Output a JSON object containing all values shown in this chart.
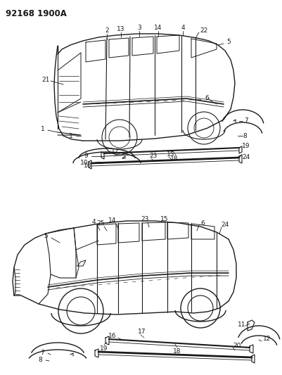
{
  "title": "92168 1900A",
  "background_color": "#ffffff",
  "line_color": "#1a1a1a",
  "fig_width": 4.02,
  "fig_height": 5.33,
  "dpi": 100,
  "top_van": {
    "body_x": [
      90,
      100,
      115,
      160,
      210,
      255,
      285,
      305,
      318,
      325,
      328,
      325,
      315,
      295,
      260,
      210,
      165,
      120,
      100,
      90
    ],
    "body_y": [
      195,
      195,
      195,
      193,
      190,
      185,
      175,
      160,
      140,
      118,
      95,
      75,
      65,
      58,
      52,
      50,
      52,
      60,
      70,
      75
    ],
    "rear_x": [
      90,
      87,
      82,
      80,
      78,
      80,
      82,
      87,
      90
    ],
    "rear_y": [
      75,
      90,
      110,
      130,
      150,
      165,
      178,
      190,
      195
    ]
  }
}
